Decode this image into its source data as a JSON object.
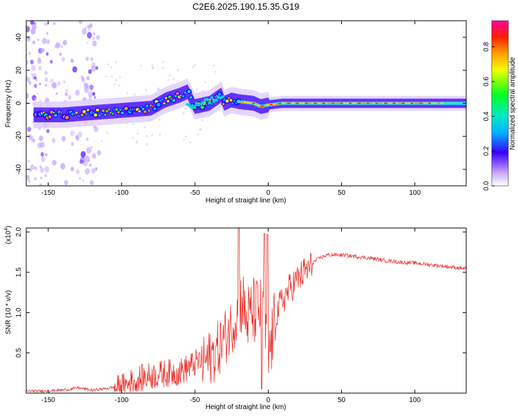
{
  "title": "C2E6.2025.190.15.35.G19",
  "chart_data": [
    {
      "type": "heatmap",
      "xlabel": "Height of straight line (km)",
      "ylabel": "Frequency (Hz)",
      "xlim": [
        -165,
        135
      ],
      "ylim": [
        -50,
        50
      ],
      "xticks": [
        -150,
        -100,
        -50,
        0,
        50,
        100
      ],
      "yticks": [
        -40,
        -20,
        0,
        20,
        40
      ],
      "colorbar": {
        "label": "Normalized spectral amplitude",
        "range": [
          0.0,
          0.95
        ],
        "ticks": [
          0.0,
          0.2,
          0.4,
          0.6,
          0.8
        ]
      },
      "ridge": {
        "x": [
          -150,
          -140,
          -125,
          -110,
          -95,
          -80,
          -70,
          -60,
          -55,
          -50,
          -40,
          -32,
          -30,
          -25,
          -20,
          -10,
          -5,
          0,
          10,
          20,
          40,
          60,
          80,
          100,
          120,
          135
        ],
        "y": [
          -7,
          -7,
          -6,
          -5,
          -4,
          -3,
          2,
          5,
          7,
          -2,
          0,
          5,
          0,
          2,
          1,
          0,
          -2,
          -1,
          0,
          0,
          0,
          0,
          0,
          0,
          0,
          0
        ]
      }
    },
    {
      "type": "line",
      "xlabel": "Height of straight line (km)",
      "ylabel": "SNR (10 * v/v)",
      "yscale_label": "(x10",
      "yscale_exp": "4",
      "xlim": [
        -165,
        135
      ],
      "ylim": [
        0,
        2.05
      ],
      "xticks": [
        -150,
        -100,
        -50,
        0,
        50,
        100
      ],
      "yticks": [
        0.5,
        1.0,
        1.5,
        2.0
      ],
      "ytick_labels": [
        "0.5",
        "1.0",
        "1.5",
        "2.0"
      ],
      "line_color": "#e8332c",
      "series": [
        {
          "x": [
            -165,
            -150,
            -135,
            -130,
            -120,
            -110,
            -100,
            -90,
            -80,
            -70,
            -60,
            -50,
            -40,
            -35,
            -30,
            -25,
            -20,
            -18,
            -15,
            -10,
            -5,
            -2,
            0,
            5,
            10,
            15,
            20,
            25,
            30,
            35,
            40,
            50,
            60,
            70,
            80,
            90,
            100,
            110,
            120,
            130,
            135
          ],
          "y": [
            0.03,
            0.03,
            0.05,
            0.07,
            0.04,
            0.06,
            0.1,
            0.2,
            0.25,
            0.28,
            0.3,
            0.4,
            0.5,
            0.6,
            0.75,
            0.9,
            1.1,
            1.25,
            1.0,
            1.1,
            1.1,
            0.8,
            0.5,
            1.0,
            1.2,
            1.35,
            1.45,
            1.55,
            1.62,
            1.68,
            1.72,
            1.72,
            1.7,
            1.68,
            1.65,
            1.63,
            1.62,
            1.6,
            1.58,
            1.56,
            1.55
          ]
        }
      ]
    }
  ]
}
